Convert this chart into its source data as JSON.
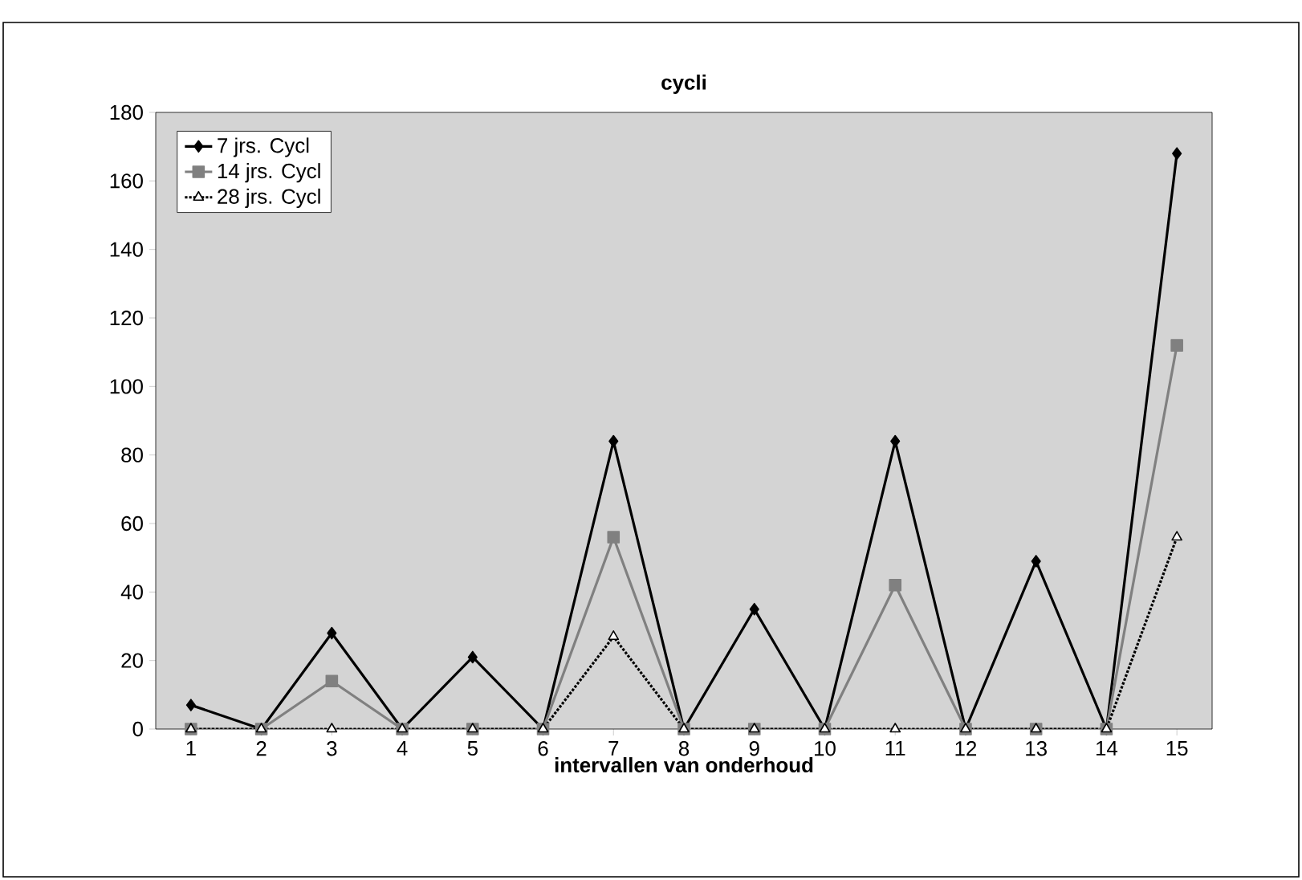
{
  "chart_data": {
    "type": "line",
    "title": "cycli",
    "xlabel": "intervallen van onderhoud",
    "categories": [
      "1",
      "2",
      "3",
      "4",
      "5",
      "6",
      "7",
      "8",
      "9",
      "10",
      "11",
      "12",
      "13",
      "14",
      "15"
    ],
    "series": [
      {
        "name": "7 jrs. Cycl",
        "color": "#000000",
        "marker": "diamond",
        "line_style": "solid",
        "values": [
          7,
          0,
          28,
          0,
          21,
          0,
          84,
          0,
          35,
          0,
          84,
          0,
          49,
          0,
          168
        ]
      },
      {
        "name": "14 jrs. Cycl",
        "color": "#808080",
        "marker": "square",
        "line_style": "solid",
        "values": [
          0,
          0,
          14,
          0,
          0,
          0,
          56,
          0,
          0,
          0,
          42,
          0,
          0,
          0,
          112
        ]
      },
      {
        "name": "28 jrs. Cycl",
        "color": "#000000",
        "marker": "triangle",
        "line_style": "dotted",
        "values": [
          0,
          0,
          0,
          0,
          0,
          0,
          27,
          0,
          0,
          0,
          0,
          0,
          0,
          0,
          56
        ]
      }
    ],
    "ylim": [
      0,
      180
    ],
    "yticks": [
      0,
      20,
      40,
      60,
      80,
      100,
      120,
      140,
      160,
      180
    ],
    "grid": false,
    "legend": "top left"
  }
}
